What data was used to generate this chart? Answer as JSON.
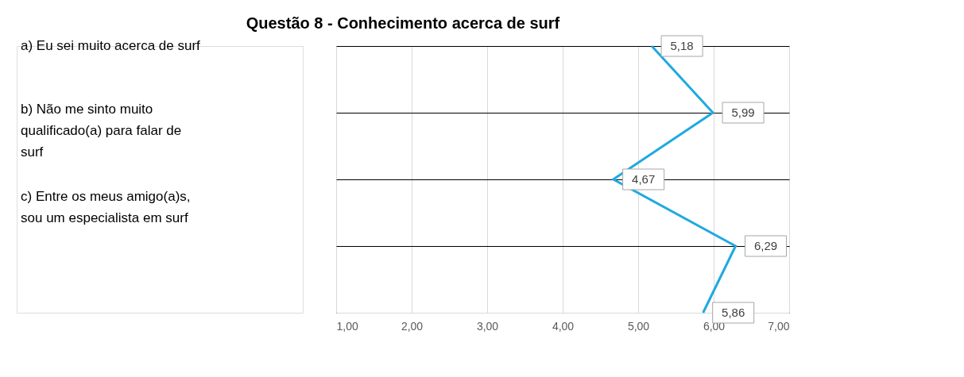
{
  "chart_data": {
    "type": "line",
    "orientation": "horizontal",
    "title": "Questão 8 - Conhecimento acerca de surf",
    "categories": [
      null,
      null,
      null,
      null,
      null
    ],
    "series": [
      {
        "color": "#1fa9e1",
        "values": [
          5.18,
          5.99,
          4.67,
          6.29,
          5.86
        ],
        "value_labels": [
          "5,18",
          "5,99",
          "4,67",
          "6,29",
          "5,86"
        ]
      }
    ],
    "xlim": [
      1,
      7
    ],
    "xticks": [
      {
        "value": 1,
        "label": "1,00"
      },
      {
        "value": 2,
        "label": "2,00"
      },
      {
        "value": 3,
        "label": "3,00"
      },
      {
        "value": 4,
        "label": "4,00"
      },
      {
        "value": 5,
        "label": "5,00"
      },
      {
        "value": 6,
        "label": "6,00"
      },
      {
        "value": 7,
        "label": "7,00"
      }
    ],
    "annotations": [
      "a) Eu sei muito acerca de surf",
      "b) Não me sinto muito qualificado(a) para falar de surf",
      "c) Entre os meus amigo(a)s, sou um especialista em surf"
    ],
    "grid": true,
    "marker": "none",
    "line_style": "solid"
  }
}
